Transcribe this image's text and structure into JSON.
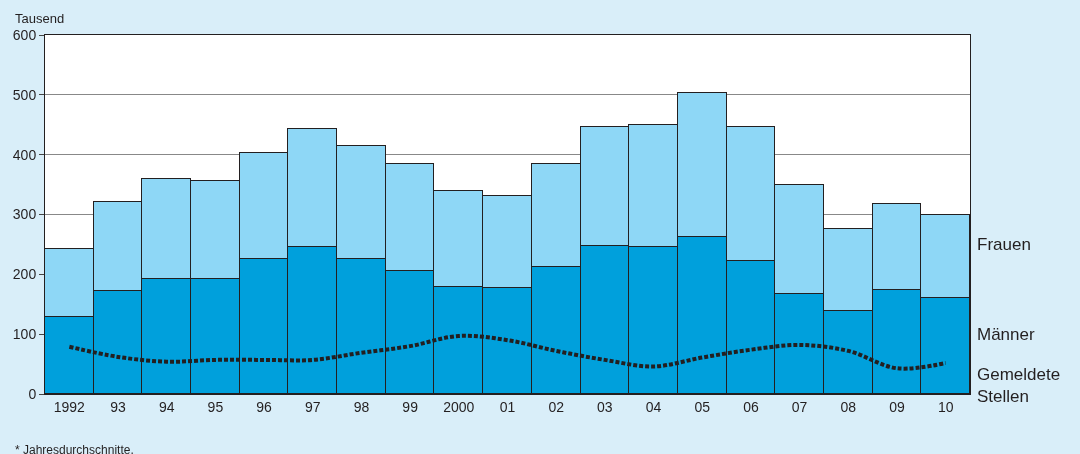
{
  "chart_data": {
    "type": "bar",
    "stacked": true,
    "ylabel": "Tausend",
    "categories": [
      "1992",
      "93",
      "94",
      "95",
      "96",
      "97",
      "98",
      "99",
      "2000",
      "01",
      "02",
      "03",
      "04",
      "05",
      "06",
      "07",
      "08",
      "09",
      "10"
    ],
    "series": [
      {
        "name": "Männer",
        "color": "#00a0dc",
        "values": [
          128,
          172,
          193,
          192,
          225,
          246,
          226,
          205,
          179,
          177,
          213,
          248,
          246,
          262,
          223,
          167,
          138,
          174,
          161
        ]
      },
      {
        "name": "Frauen",
        "color": "#8ed7f6",
        "values": [
          115,
          149,
          166,
          164,
          177,
          197,
          189,
          179,
          160,
          154,
          172,
          198,
          203,
          241,
          223,
          182,
          137,
          144,
          139
        ]
      },
      {
        "name": "Gemeldete Stellen",
        "type": "line",
        "color": "#231f20",
        "line_style": "dotted",
        "values": [
          79,
          62,
          54,
          57,
          57,
          57,
          69,
          80,
          97,
          90,
          72,
          57,
          46,
          61,
          74,
          82,
          72,
          43,
          52
        ]
      }
    ],
    "ylim": [
      0,
      600
    ],
    "yticks": [
      0,
      100,
      200,
      300,
      400,
      500,
      600
    ],
    "grid": "y",
    "legend": false,
    "annotations": [
      "* Jahresdurchschnitte."
    ]
  }
}
